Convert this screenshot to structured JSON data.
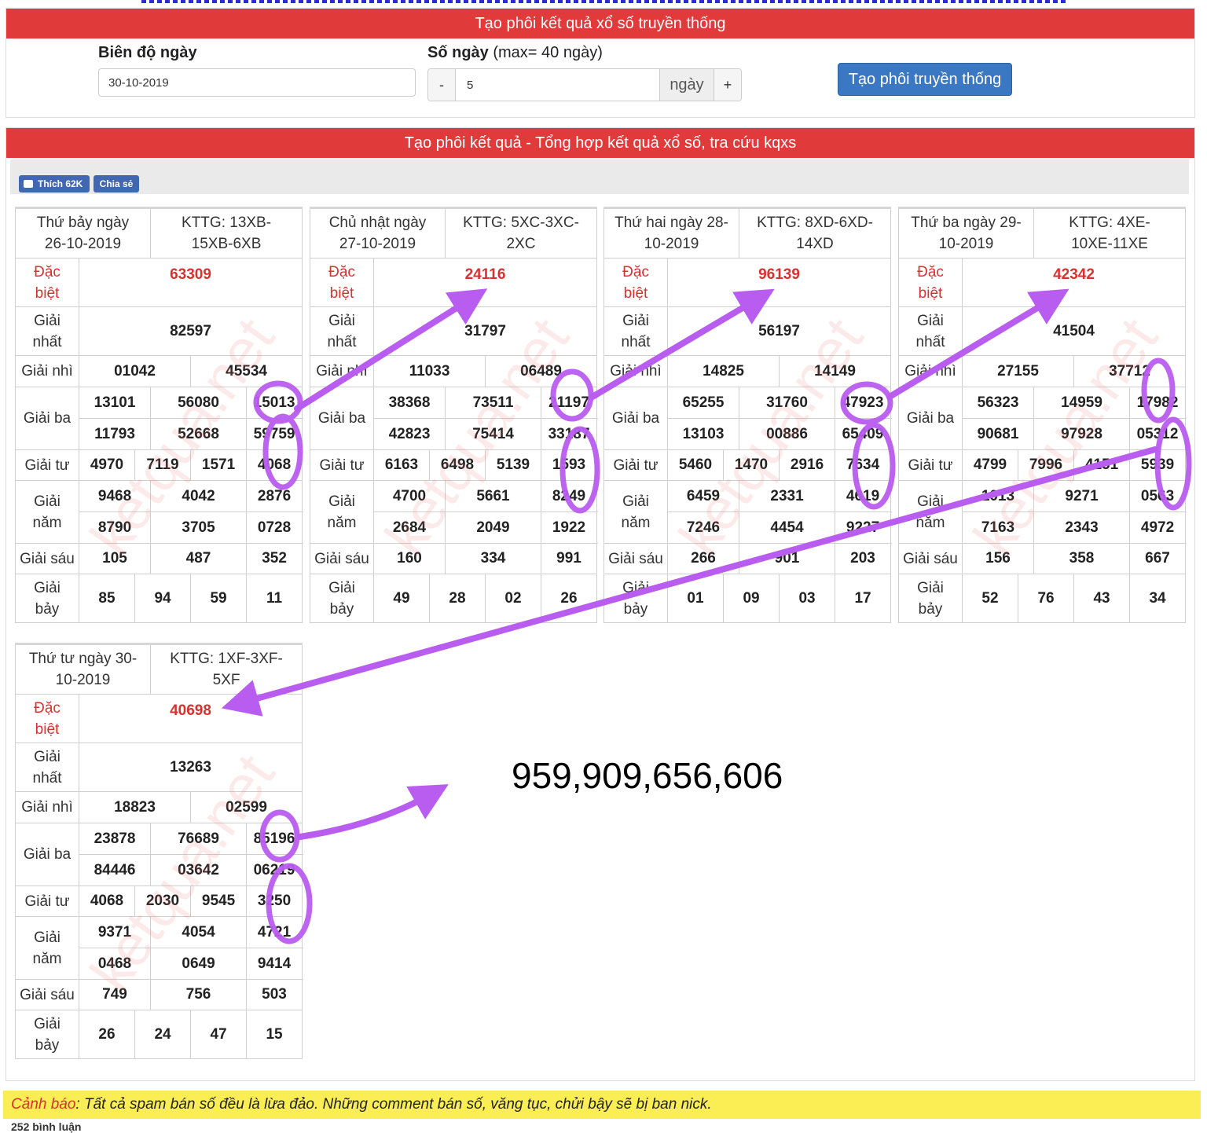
{
  "panel1": {
    "title": "Tạo phôi kết quả xổ số truyền thống",
    "date_label": "Biên độ ngày",
    "date_value": "30-10-2019",
    "days_label": "Số ngày",
    "days_hint": "(max= 40 ngày)",
    "minus": "-",
    "days_value": "5",
    "days_unit": "ngày",
    "plus": "+",
    "create_button": "Tạo phôi truyền thống"
  },
  "panel2": {
    "title": "Tạo phôi kết quả - Tổng hợp kết quả xổ số, tra cứu kqxs",
    "fb_like": "Thích 62K",
    "fb_share": "Chia sẻ"
  },
  "labels": {
    "db1": "Đặc",
    "db2": "biệt",
    "g1a": "Giải",
    "g1b": "nhất",
    "g2": "Giải nhì",
    "g3": "Giải ba",
    "g4": "Giải tư",
    "g5a": "Giải",
    "g5b": "năm",
    "g6": "Giải sáu",
    "g7a": "Giải",
    "g7b": "bảy"
  },
  "results": [
    {
      "day1": "Thứ bảy ngày",
      "day2": "26-10-2019",
      "code1": "KTTG: 13XB-",
      "code2": "15XB-6XB",
      "db": "63309",
      "g1": "82597",
      "g2": [
        "01042",
        "45534"
      ],
      "g3": [
        "13101",
        "56080",
        "15013",
        "11793",
        "52668",
        "59759"
      ],
      "g4": [
        "4970",
        "7119",
        "1571",
        "4068"
      ],
      "g5": [
        "9468",
        "4042",
        "2876",
        "8790",
        "3705",
        "0728"
      ],
      "g6": [
        "105",
        "487",
        "352"
      ],
      "g7": [
        "85",
        "94",
        "59",
        "11"
      ]
    },
    {
      "day1": "Chủ nhật ngày",
      "day2": "27-10-2019",
      "code1": "KTTG: 5XC-3XC-",
      "code2": "2XC",
      "db": "24116",
      "g1": "31797",
      "g2": [
        "11033",
        "06489"
      ],
      "g3": [
        "38368",
        "73511",
        "21197",
        "42823",
        "75414",
        "33187"
      ],
      "g4": [
        "6163",
        "6498",
        "5139",
        "1593"
      ],
      "g5": [
        "4700",
        "5661",
        "8249",
        "2684",
        "2049",
        "1922"
      ],
      "g6": [
        "160",
        "334",
        "991"
      ],
      "g7": [
        "49",
        "28",
        "02",
        "26"
      ]
    },
    {
      "day1": "Thứ hai ngày 28-",
      "day2": "10-2019",
      "code1": "KTTG: 8XD-6XD-",
      "code2": "14XD",
      "db": "96139",
      "g1": "56197",
      "g2": [
        "14825",
        "14149"
      ],
      "g3": [
        "65255",
        "31760",
        "47923",
        "13103",
        "00886",
        "65409"
      ],
      "g4": [
        "5460",
        "1470",
        "2916",
        "7634"
      ],
      "g5": [
        "6459",
        "2331",
        "4619",
        "7246",
        "4454",
        "9227"
      ],
      "g6": [
        "266",
        "901",
        "203"
      ],
      "g7": [
        "01",
        "09",
        "03",
        "17"
      ]
    },
    {
      "day1": "Thứ ba ngày 29-",
      "day2": "10-2019",
      "code1": "KTTG: 4XE-",
      "code2": "10XE-11XE",
      "db": "42342",
      "g1": "41504",
      "g2": [
        "27155",
        "37712"
      ],
      "g3": [
        "56323",
        "14959",
        "17982",
        "90681",
        "97928",
        "05312"
      ],
      "g4": [
        "4799",
        "7996",
        "4151",
        "5939"
      ],
      "g5": [
        "1013",
        "9271",
        "0563",
        "7163",
        "2343",
        "4972"
      ],
      "g6": [
        "156",
        "358",
        "667"
      ],
      "g7": [
        "52",
        "76",
        "43",
        "34"
      ]
    },
    {
      "day1": "Thứ tư ngày 30-",
      "day2": "10-2019",
      "code1": "KTTG: 1XF-3XF-",
      "code2": "5XF",
      "db": "40698",
      "g1": "13263",
      "g2": [
        "18823",
        "02599"
      ],
      "g3": [
        "23878",
        "76689",
        "85196",
        "84446",
        "03642",
        "06219"
      ],
      "g4": [
        "4068",
        "2030",
        "9545",
        "3250"
      ],
      "g5": [
        "9371",
        "4054",
        "4721",
        "0468",
        "0649",
        "9414"
      ],
      "g6": [
        "749",
        "756",
        "503"
      ],
      "g7": [
        "26",
        "24",
        "47",
        "15"
      ]
    }
  ],
  "watermark": "ketqua.net",
  "annotation_number": "959,909,656,606",
  "annotation_color": "#b95cf0",
  "warning": {
    "label": "Cảnh báo",
    "text": ": Tất cả spam bán số đều là lừa đảo. Những comment bán số, văng tục, chửi bậy sẽ bị ban nick."
  },
  "comments_count": "252 bình luận"
}
